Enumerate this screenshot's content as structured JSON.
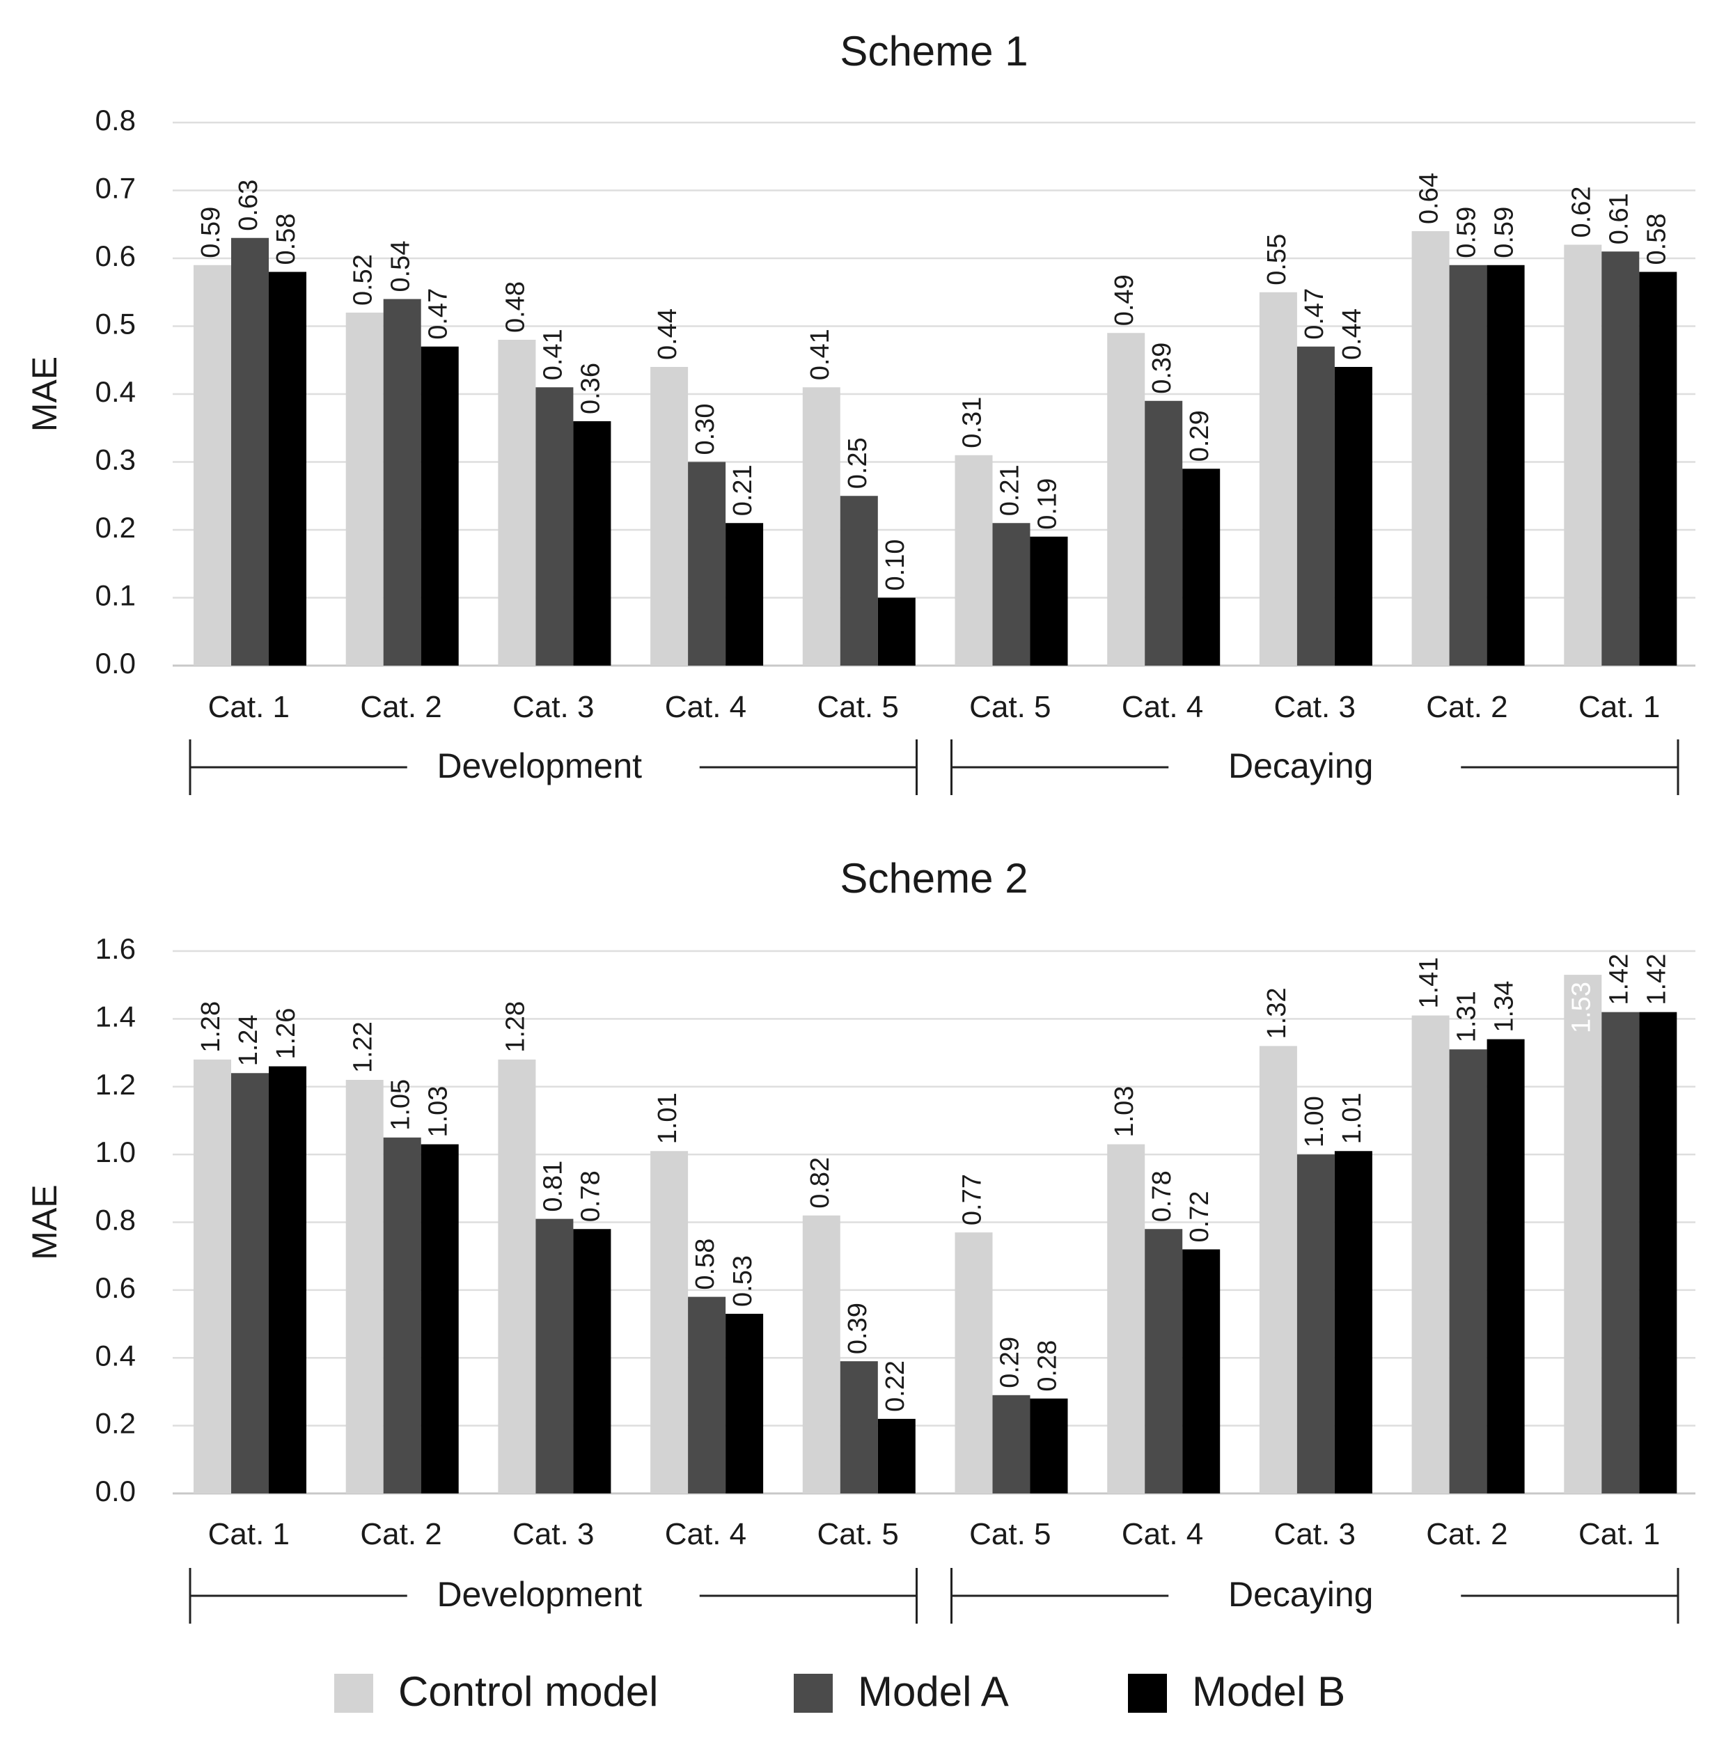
{
  "colors": {
    "control": "#d3d3d3",
    "model_a": "#4b4b4b",
    "model_b": "#000000"
  },
  "legend": [
    {
      "key": "control",
      "label": "Control model"
    },
    {
      "key": "model_a",
      "label": "Model A"
    },
    {
      "key": "model_b",
      "label": "Model B"
    }
  ],
  "chart_data": [
    {
      "type": "bar",
      "title": "Scheme 1",
      "ylabel": "MAE",
      "ylim": [
        0,
        0.8
      ],
      "yticks": [
        "0.0",
        "0.1",
        "0.2",
        "0.3",
        "0.4",
        "0.5",
        "0.6",
        "0.7",
        "0.8"
      ],
      "grid": true,
      "categories": [
        "Cat. 1",
        "Cat. 2",
        "Cat. 3",
        "Cat. 4",
        "Cat. 5",
        "Cat. 5",
        "Cat. 4",
        "Cat. 3",
        "Cat. 2",
        "Cat. 1"
      ],
      "groups": [
        {
          "label": "Development",
          "span": [
            0,
            4
          ]
        },
        {
          "label": "Decaying",
          "span": [
            5,
            9
          ]
        }
      ],
      "series": [
        {
          "name": "Control model",
          "key": "control",
          "values": [
            0.59,
            0.52,
            0.48,
            0.44,
            0.41,
            0.31,
            0.49,
            0.55,
            0.64,
            0.62
          ],
          "labels": [
            "0.59",
            "0.52",
            "0.48",
            "0.44",
            "0.41",
            "0.31",
            "0.49",
            "0.55",
            "0.64",
            "0.62"
          ]
        },
        {
          "name": "Model A",
          "key": "model_a",
          "values": [
            0.63,
            0.54,
            0.41,
            0.3,
            0.25,
            0.21,
            0.39,
            0.47,
            0.59,
            0.61
          ],
          "labels": [
            "0.63",
            "0.54",
            "0.41",
            "0.30",
            "0.25",
            "0.21",
            "0.39",
            "0.47",
            "0.59",
            "0.61"
          ]
        },
        {
          "name": "Model B",
          "key": "model_b",
          "values": [
            0.58,
            0.47,
            0.36,
            0.21,
            0.1,
            0.19,
            0.29,
            0.44,
            0.59,
            0.58
          ],
          "labels": [
            "0.58",
            "0.47",
            "0.36",
            "0.21",
            "0.10",
            "0.19",
            "0.29",
            "0.44",
            "0.59",
            "0.58"
          ]
        }
      ]
    },
    {
      "type": "bar",
      "title": "Scheme 2",
      "ylabel": "MAE",
      "ylim": [
        0,
        1.6
      ],
      "yticks": [
        "0.0",
        "0.2",
        "0.4",
        "0.6",
        "0.8",
        "1.0",
        "1.2",
        "1.4",
        "1.6"
      ],
      "grid": true,
      "categories": [
        "Cat. 1",
        "Cat. 2",
        "Cat. 3",
        "Cat. 4",
        "Cat. 5",
        "Cat. 5",
        "Cat. 4",
        "Cat. 3",
        "Cat. 2",
        "Cat. 1"
      ],
      "groups": [
        {
          "label": "Development",
          "span": [
            0,
            4
          ]
        },
        {
          "label": "Decaying",
          "span": [
            5,
            9
          ]
        }
      ],
      "series": [
        {
          "name": "Control model",
          "key": "control",
          "values": [
            1.28,
            1.22,
            1.28,
            1.01,
            0.82,
            0.77,
            1.03,
            1.32,
            1.41,
            1.53
          ],
          "labels": [
            "1.28",
            "1.22",
            "1.28",
            "1.01",
            "0.82",
            "0.77",
            "1.03",
            "1.32",
            "1.41",
            "1.53"
          ]
        },
        {
          "name": "Model A",
          "key": "model_a",
          "values": [
            1.24,
            1.05,
            0.81,
            0.58,
            0.39,
            0.29,
            0.78,
            1.0,
            1.31,
            1.42
          ],
          "labels": [
            "1.24",
            "1.05",
            "0.81",
            "0.58",
            "0.39",
            "0.29",
            "0.78",
            "1.00",
            "1.31",
            "1.42"
          ]
        },
        {
          "name": "Model B",
          "key": "model_b",
          "values": [
            1.26,
            1.03,
            0.78,
            0.53,
            0.22,
            0.28,
            0.72,
            1.01,
            1.34,
            1.42
          ],
          "labels": [
            "1.26",
            "1.03",
            "0.78",
            "0.53",
            "0.22",
            "0.28",
            "0.72",
            "1.01",
            "1.34",
            "1.42"
          ]
        }
      ]
    }
  ]
}
